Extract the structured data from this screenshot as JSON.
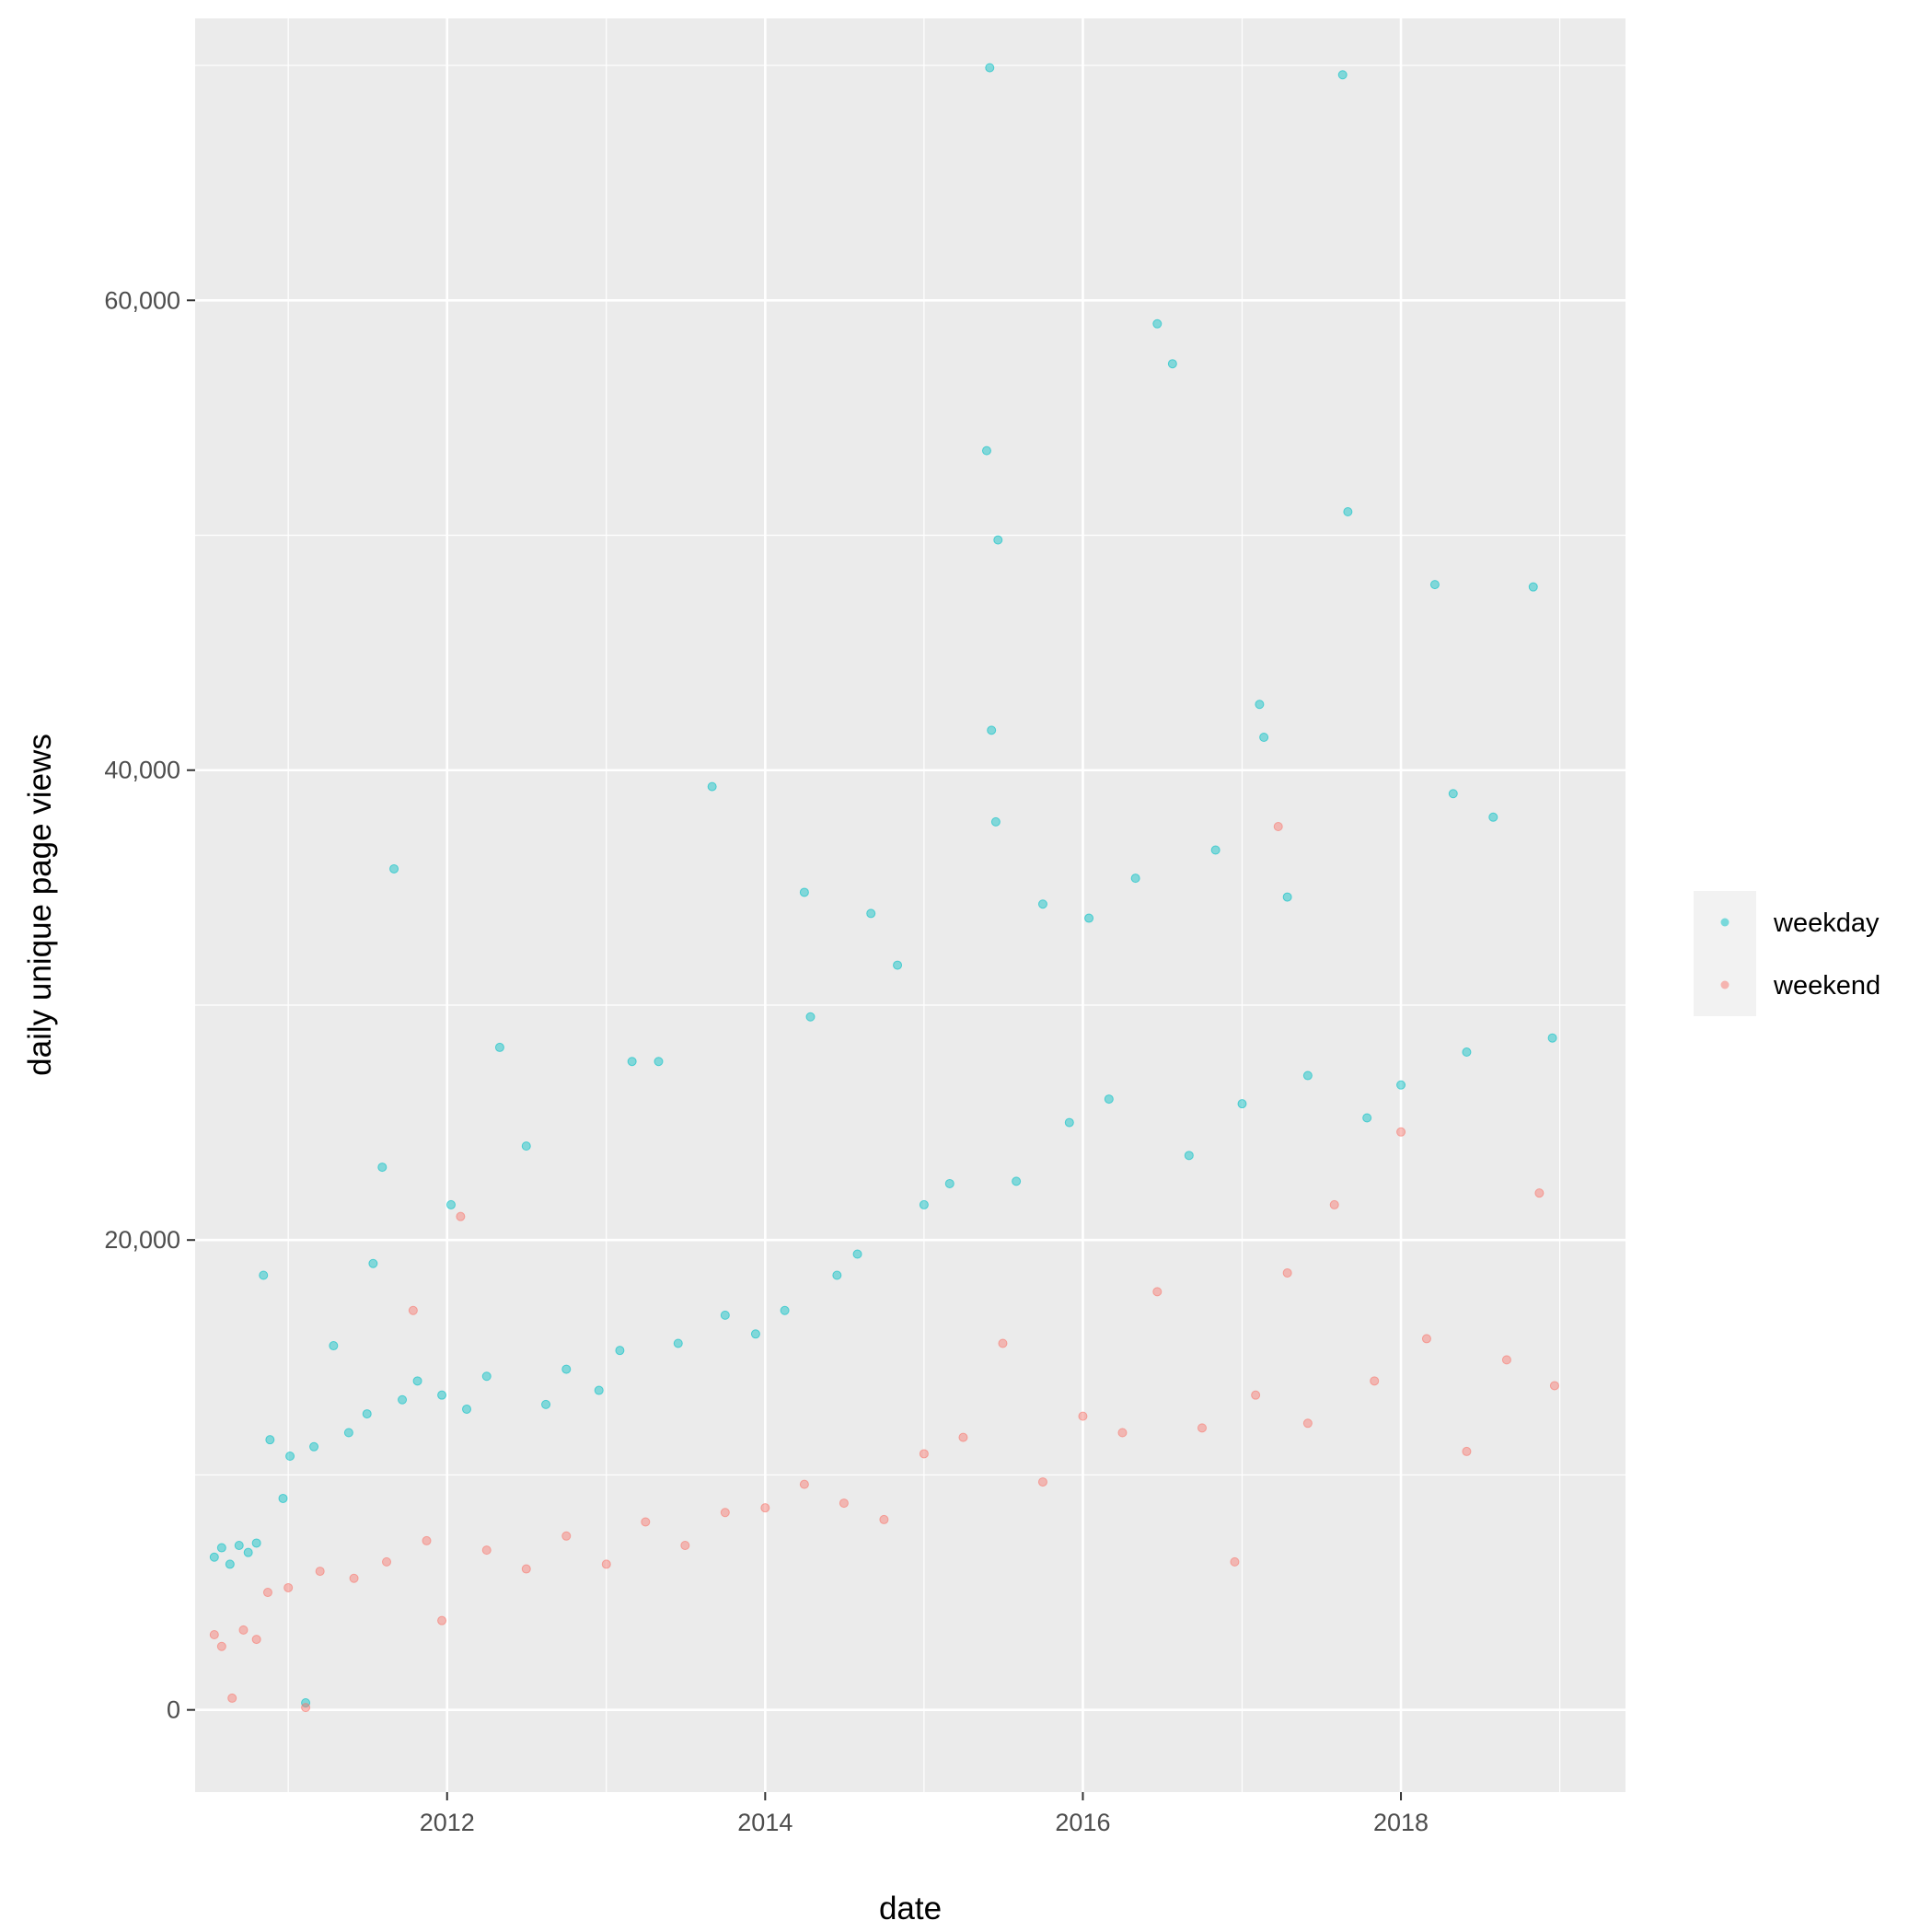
{
  "chart_data": {
    "type": "scatter",
    "title": "",
    "xlabel": "date",
    "ylabel": "daily unique page views",
    "x_type": "date",
    "xlim": [
      "2010-06-01",
      "2019-06-01"
    ],
    "ylim": [
      -3500,
      72000
    ],
    "x_ticks": [
      {
        "label": "2012",
        "value": "2012-01-01"
      },
      {
        "label": "2014",
        "value": "2014-01-01"
      },
      {
        "label": "2016",
        "value": "2016-01-01"
      },
      {
        "label": "2018",
        "value": "2018-01-01"
      }
    ],
    "y_ticks": [
      {
        "label": "0",
        "value": 0
      },
      {
        "label": "20,000",
        "value": 20000
      },
      {
        "label": "40,000",
        "value": 40000
      },
      {
        "label": "60,000",
        "value": 60000
      }
    ],
    "grid": true,
    "legend_position": "right",
    "series": [
      {
        "name": "weekday",
        "color": "#00BFC4",
        "points": [
          [
            "2010-07-15",
            6500
          ],
          [
            "2010-08-01",
            6900
          ],
          [
            "2010-08-20",
            6200
          ],
          [
            "2010-09-10",
            7000
          ],
          [
            "2010-10-01",
            6700
          ],
          [
            "2010-10-20",
            7100
          ],
          [
            "2010-11-05",
            18500
          ],
          [
            "2010-11-20",
            11500
          ],
          [
            "2010-12-20",
            9000
          ],
          [
            "2011-01-05",
            10800
          ],
          [
            "2011-02-10",
            300
          ],
          [
            "2011-03-01",
            11200
          ],
          [
            "2011-04-15",
            15500
          ],
          [
            "2011-05-20",
            11800
          ],
          [
            "2011-07-01",
            12600
          ],
          [
            "2011-07-15",
            19000
          ],
          [
            "2011-08-05",
            23100
          ],
          [
            "2011-09-01",
            35800
          ],
          [
            "2011-09-20",
            13200
          ],
          [
            "2011-10-25",
            14000
          ],
          [
            "2011-12-20",
            13400
          ],
          [
            "2012-01-10",
            21500
          ],
          [
            "2012-02-15",
            12800
          ],
          [
            "2012-04-01",
            14200
          ],
          [
            "2012-05-01",
            28200
          ],
          [
            "2012-07-01",
            24000
          ],
          [
            "2012-08-15",
            13000
          ],
          [
            "2012-10-01",
            14500
          ],
          [
            "2012-12-15",
            13600
          ],
          [
            "2013-02-01",
            15300
          ],
          [
            "2013-03-01",
            27600
          ],
          [
            "2013-05-01",
            27600
          ],
          [
            "2013-06-15",
            15600
          ],
          [
            "2013-09-01",
            39300
          ],
          [
            "2013-10-01",
            16800
          ],
          [
            "2013-12-10",
            16000
          ],
          [
            "2014-02-15",
            17000
          ],
          [
            "2014-04-01",
            34800
          ],
          [
            "2014-04-15",
            29500
          ],
          [
            "2014-06-15",
            18500
          ],
          [
            "2014-08-01",
            19400
          ],
          [
            "2014-09-01",
            33900
          ],
          [
            "2014-11-01",
            31700
          ],
          [
            "2015-01-01",
            21500
          ],
          [
            "2015-03-01",
            22400
          ],
          [
            "2015-05-25",
            53600
          ],
          [
            "2015-06-01",
            69900
          ],
          [
            "2015-06-05",
            41700
          ],
          [
            "2015-06-15",
            37800
          ],
          [
            "2015-06-20",
            49800
          ],
          [
            "2015-08-01",
            22500
          ],
          [
            "2015-10-01",
            34300
          ],
          [
            "2015-12-01",
            25000
          ],
          [
            "2016-01-15",
            33700
          ],
          [
            "2016-03-01",
            26000
          ],
          [
            "2016-05-01",
            35400
          ],
          [
            "2016-06-20",
            59000
          ],
          [
            "2016-07-25",
            57300
          ],
          [
            "2016-09-01",
            23600
          ],
          [
            "2016-11-01",
            36600
          ],
          [
            "2017-01-01",
            25800
          ],
          [
            "2017-02-10",
            42800
          ],
          [
            "2017-02-20",
            41400
          ],
          [
            "2017-04-15",
            34600
          ],
          [
            "2017-06-01",
            27000
          ],
          [
            "2017-08-20",
            69600
          ],
          [
            "2017-09-01",
            51000
          ],
          [
            "2017-10-15",
            25200
          ],
          [
            "2018-01-01",
            26600
          ],
          [
            "2018-03-20",
            47900
          ],
          [
            "2018-05-01",
            39000
          ],
          [
            "2018-06-01",
            28000
          ],
          [
            "2018-08-01",
            38000
          ],
          [
            "2018-11-01",
            47800
          ],
          [
            "2018-12-15",
            28600
          ]
        ]
      },
      {
        "name": "weekend",
        "color": "#F8766D",
        "points": [
          [
            "2010-07-15",
            3200
          ],
          [
            "2010-08-01",
            2700
          ],
          [
            "2010-08-25",
            500
          ],
          [
            "2010-09-20",
            3400
          ],
          [
            "2010-10-20",
            3000
          ],
          [
            "2010-11-15",
            5000
          ],
          [
            "2011-01-01",
            5200
          ],
          [
            "2011-02-10",
            100
          ],
          [
            "2011-03-15",
            5900
          ],
          [
            "2011-06-01",
            5600
          ],
          [
            "2011-08-15",
            6300
          ],
          [
            "2011-10-15",
            17000
          ],
          [
            "2011-11-15",
            7200
          ],
          [
            "2011-12-20",
            3800
          ],
          [
            "2012-02-01",
            21000
          ],
          [
            "2012-04-01",
            6800
          ],
          [
            "2012-07-01",
            6000
          ],
          [
            "2012-10-01",
            7400
          ],
          [
            "2013-01-01",
            6200
          ],
          [
            "2013-04-01",
            8000
          ],
          [
            "2013-07-01",
            7000
          ],
          [
            "2013-10-01",
            8400
          ],
          [
            "2014-01-01",
            8600
          ],
          [
            "2014-04-01",
            9600
          ],
          [
            "2014-07-01",
            8800
          ],
          [
            "2014-10-01",
            8100
          ],
          [
            "2015-01-01",
            10900
          ],
          [
            "2015-04-01",
            11600
          ],
          [
            "2015-07-01",
            15600
          ],
          [
            "2015-10-01",
            9700
          ],
          [
            "2016-01-01",
            12500
          ],
          [
            "2016-04-01",
            11800
          ],
          [
            "2016-06-20",
            17800
          ],
          [
            "2016-10-01",
            12000
          ],
          [
            "2016-12-15",
            6300
          ],
          [
            "2017-02-01",
            13400
          ],
          [
            "2017-03-25",
            37600
          ],
          [
            "2017-04-15",
            18600
          ],
          [
            "2017-06-01",
            12200
          ],
          [
            "2017-08-01",
            21500
          ],
          [
            "2017-11-01",
            14000
          ],
          [
            "2018-01-01",
            24600
          ],
          [
            "2018-03-01",
            15800
          ],
          [
            "2018-06-01",
            11000
          ],
          [
            "2018-09-01",
            14900
          ],
          [
            "2018-11-15",
            22000
          ],
          [
            "2018-12-20",
            13800
          ]
        ]
      }
    ]
  }
}
